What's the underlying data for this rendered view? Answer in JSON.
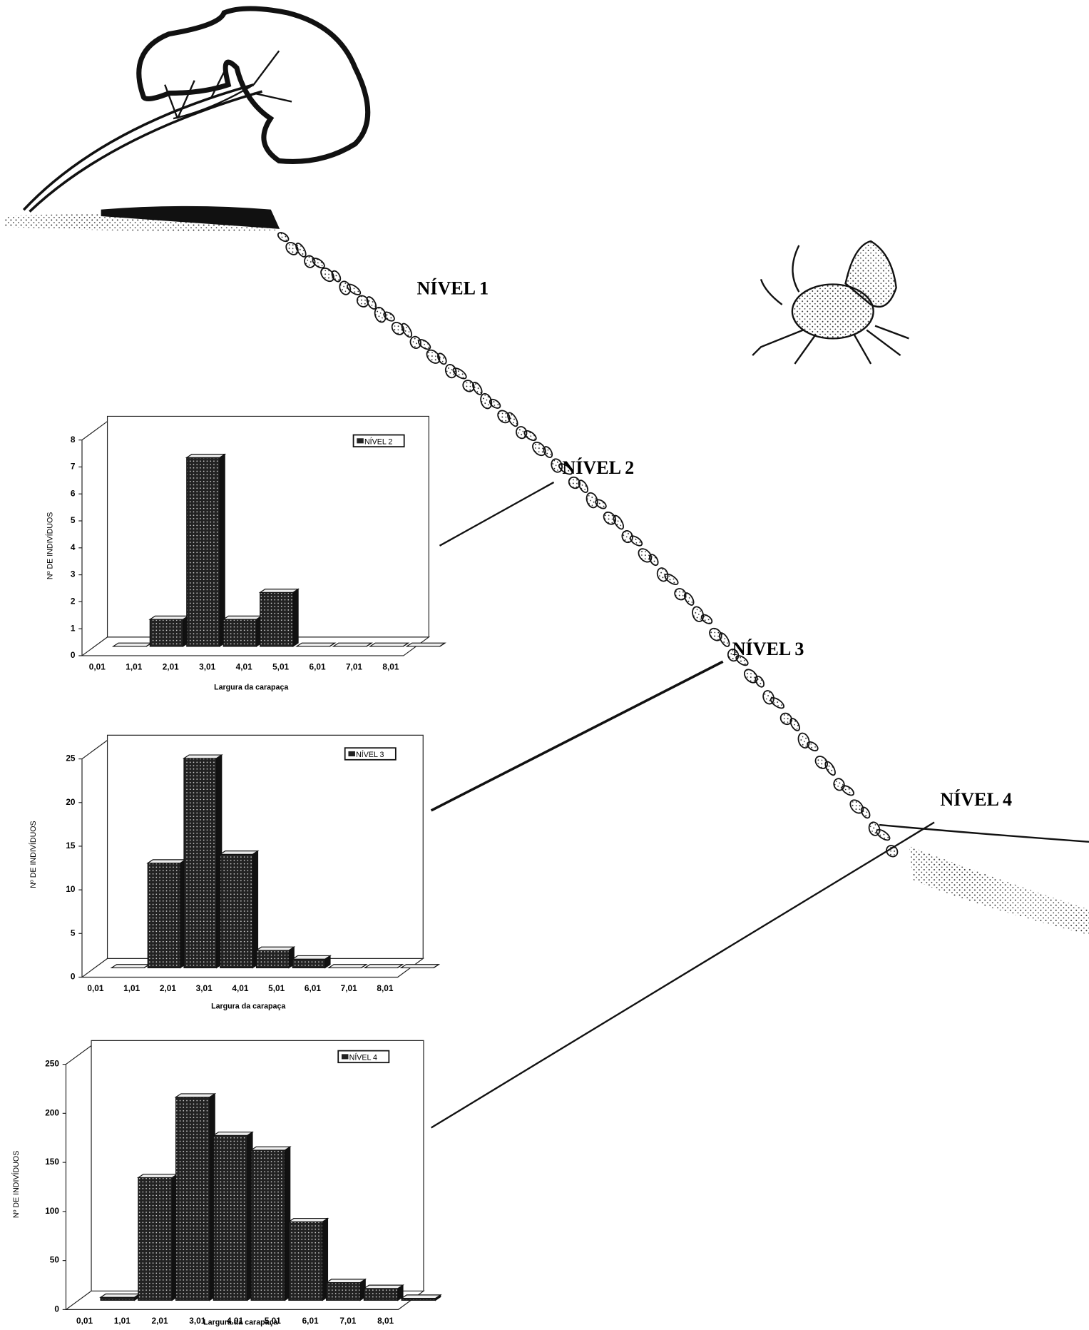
{
  "level_labels": [
    "NÍVEL 1",
    "NÍVEL 2",
    "NÍVEL 3",
    "NÍVEL 4"
  ],
  "chart_data": [
    {
      "type": "bar",
      "xlabel": "Largura da carapaça",
      "ylabel": "Nº DE INDIVÍDUOS",
      "categories": [
        "0,01",
        "1,01",
        "2,01",
        "3,01",
        "4,01",
        "5,01",
        "6,01",
        "7,01",
        "8,01"
      ],
      "series": [
        {
          "name": "NÍVEL 2",
          "color": "#222222",
          "values": [
            0,
            1,
            7,
            1,
            2,
            0,
            0,
            0,
            0
          ]
        }
      ],
      "ylim": [
        0,
        8
      ],
      "yticks": [
        0,
        1,
        2,
        3,
        4,
        5,
        6,
        7,
        8
      ],
      "legend": "upper right"
    },
    {
      "type": "bar",
      "xlabel": "Largura da carapaça",
      "ylabel": "Nº DE INDIVÍDUOS",
      "categories": [
        "0,01",
        "1,01",
        "2,01",
        "3,01",
        "4,01",
        "5,01",
        "6,01",
        "7,01",
        "8,01"
      ],
      "series": [
        {
          "name": "NÍVEL 3",
          "color": "#222222",
          "values": [
            0,
            12,
            24,
            13,
            2,
            1,
            0,
            0,
            0
          ]
        }
      ],
      "ylim": [
        0,
        25
      ],
      "yticks": [
        0,
        5,
        10,
        15,
        20,
        25
      ],
      "legend": "upper right"
    },
    {
      "type": "bar",
      "xlabel": "Largura da carapaça",
      "ylabel": "Nº DE INDIVÍDUOS",
      "categories": [
        "0,01",
        "1,01",
        "2,01",
        "3,01",
        "4,01",
        "5,01",
        "6,01",
        "7,01",
        "8,01"
      ],
      "series": [
        {
          "name": "NÍVEL 4",
          "color": "#222222",
          "values": [
            3,
            125,
            207,
            168,
            153,
            80,
            18,
            12,
            2
          ]
        }
      ],
      "ylim": [
        0,
        250
      ],
      "yticks": [
        0,
        50,
        100,
        150,
        200,
        250
      ],
      "legend": "upper right"
    }
  ]
}
